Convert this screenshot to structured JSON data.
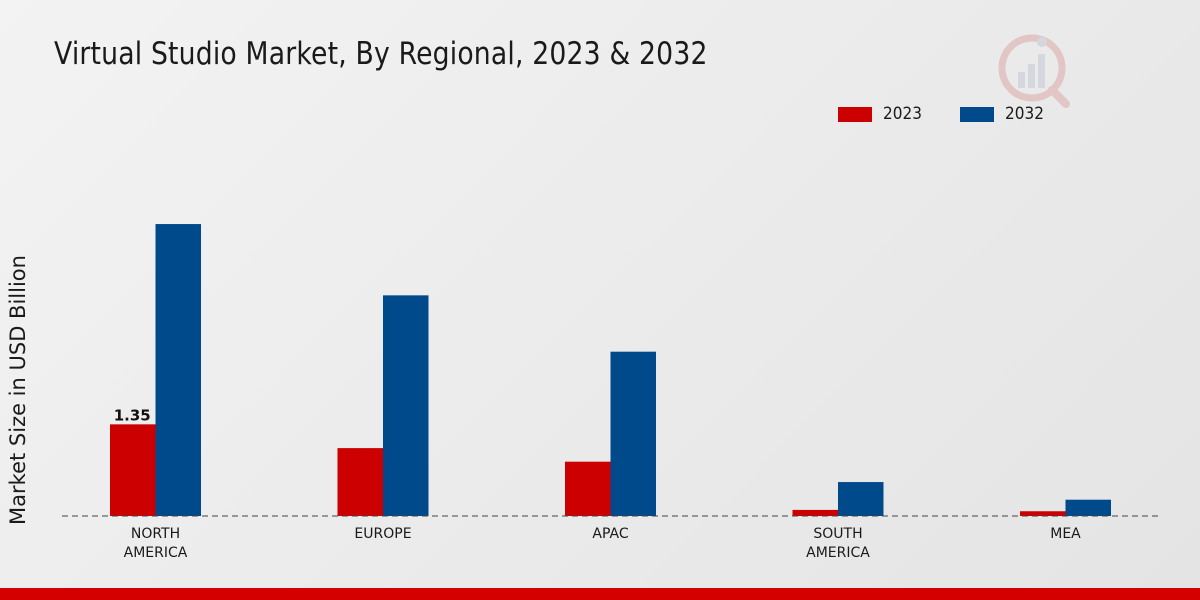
{
  "title": "Virtual Studio Market, By Regional, 2023 & 2032",
  "colors": {
    "s2023": "#cc0000",
    "s2032": "#004a8c",
    "accent": "#d40000"
  },
  "icons": {
    "logo": "bar-chart-magnifier-logo"
  },
  "chart_data": {
    "type": "bar",
    "title": "Virtual Studio Market, By Regional, 2023 & 2032",
    "xlabel": "",
    "ylabel": "Market Size in USD Billion",
    "categories": [
      "NORTH\nAMERICA",
      "EUROPE",
      "APAC",
      "SOUTH\nAMERICA",
      "MEA"
    ],
    "series": [
      {
        "name": "2023",
        "values": [
          1.35,
          1.0,
          0.8,
          0.09,
          0.07
        ]
      },
      {
        "name": "2032",
        "values": [
          4.3,
          3.25,
          2.42,
          0.5,
          0.24
        ]
      }
    ],
    "data_labels": [
      {
        "series": "2023",
        "category": "NORTH\nAMERICA",
        "text": "1.35"
      }
    ],
    "ylim": [
      0,
      7.6
    ],
    "grid": false,
    "legend": "top-right"
  }
}
